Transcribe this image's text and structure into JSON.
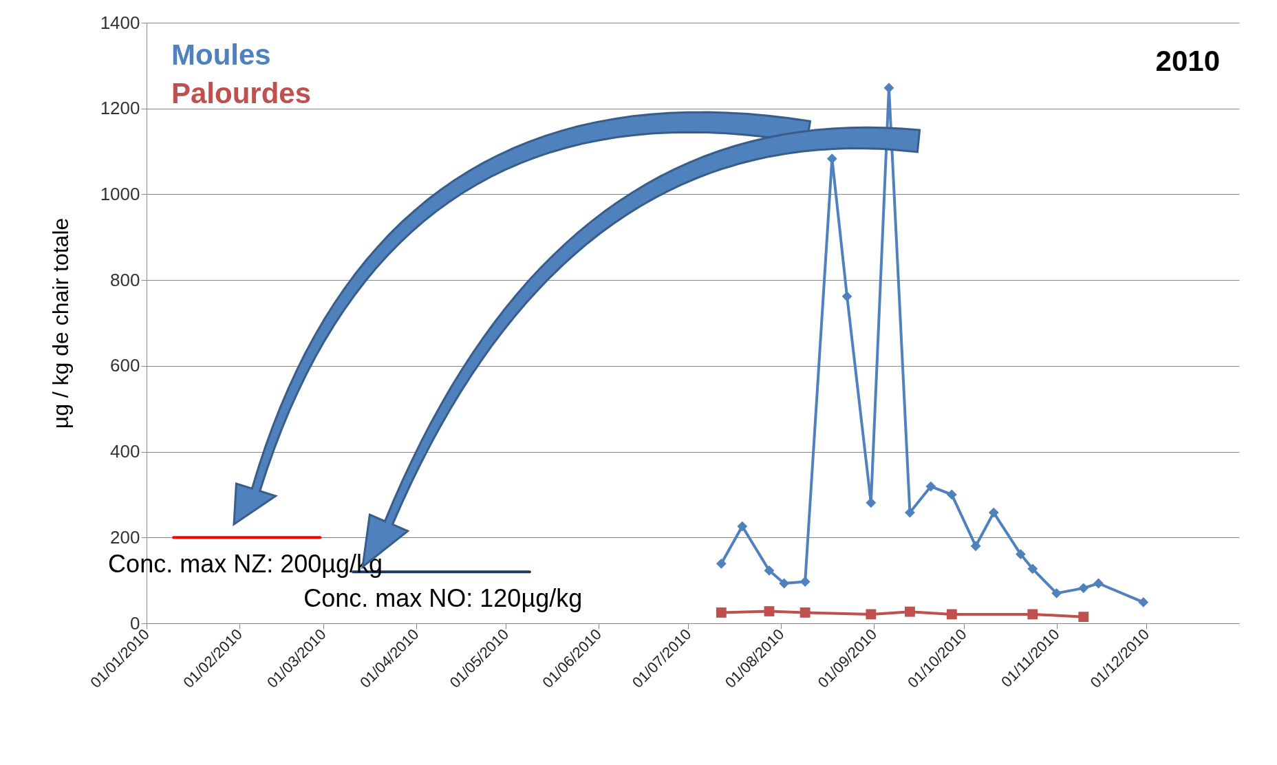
{
  "chart_data": {
    "type": "line",
    "ylabel": "µg / kg de chair totale",
    "xlim": [
      "2010-01-01",
      "2011-01-01"
    ],
    "xticks": [
      {
        "value": "2010-01-01",
        "label": "01/01/2010"
      },
      {
        "value": "2010-02-01",
        "label": "01/02/2010"
      },
      {
        "value": "2010-03-01",
        "label": "01/03/2010"
      },
      {
        "value": "2010-04-01",
        "label": "01/04/2010"
      },
      {
        "value": "2010-05-01",
        "label": "01/05/2010"
      },
      {
        "value": "2010-06-01",
        "label": "01/06/2010"
      },
      {
        "value": "2010-07-01",
        "label": "01/07/2010"
      },
      {
        "value": "2010-08-01",
        "label": "01/08/2010"
      },
      {
        "value": "2010-09-01",
        "label": "01/09/2010"
      },
      {
        "value": "2010-10-01",
        "label": "01/10/2010"
      },
      {
        "value": "2010-11-01",
        "label": "01/11/2010"
      },
      {
        "value": "2010-12-01",
        "label": "01/12/2010"
      }
    ],
    "ylim": [
      0,
      1400
    ],
    "yticks": [
      0,
      200,
      400,
      600,
      800,
      1000,
      1200,
      1400
    ],
    "grid": "y",
    "legend": "top left",
    "series": [
      {
        "name": "Moules",
        "color": "#4f81bd",
        "marker": "diamond",
        "x": [
          "2010-07-12",
          "2010-07-19",
          "2010-07-28",
          "2010-08-02",
          "2010-08-09",
          "2010-08-18",
          "2010-08-23",
          "2010-08-31",
          "2010-09-06",
          "2010-09-13",
          "2010-09-20",
          "2010-09-27",
          "2010-10-05",
          "2010-10-11",
          "2010-10-20",
          "2010-10-24",
          "2010-11-01",
          "2010-11-10",
          "2010-11-15",
          "2010-11-30"
        ],
        "values": [
          139,
          226,
          123,
          93,
          97,
          1083,
          762,
          281,
          1248,
          258,
          319,
          300,
          180,
          258,
          161,
          127,
          70,
          82,
          93,
          49
        ]
      },
      {
        "name": "Palourdes",
        "color": "#c0504d",
        "marker": "square",
        "x": [
          "2010-07-12",
          "2010-07-28",
          "2010-08-09",
          "2010-08-31",
          "2010-09-13",
          "2010-09-27",
          "2010-10-24",
          "2010-11-10"
        ],
        "values": [
          25,
          28,
          25,
          21,
          27,
          21,
          21,
          15
        ]
      },
      {
        "color": "#ff0000",
        "marker": "none",
        "x": [
          "2010-01-10",
          "2010-02-28"
        ],
        "values": [
          200,
          200
        ]
      },
      {
        "color": "#1f3864",
        "marker": "none",
        "x": [
          "2010-03-11",
          "2010-05-09"
        ],
        "values": [
          120,
          120
        ]
      }
    ],
    "annotations": [
      "2010",
      {
        "text": "Conc. max NZ: 200µg/kg",
        "x": "2010-02-03",
        "y": 200
      },
      {
        "text": "Conc. max NO: 120µg/kg",
        "x": "2010-04-10",
        "y": 120
      }
    ]
  }
}
